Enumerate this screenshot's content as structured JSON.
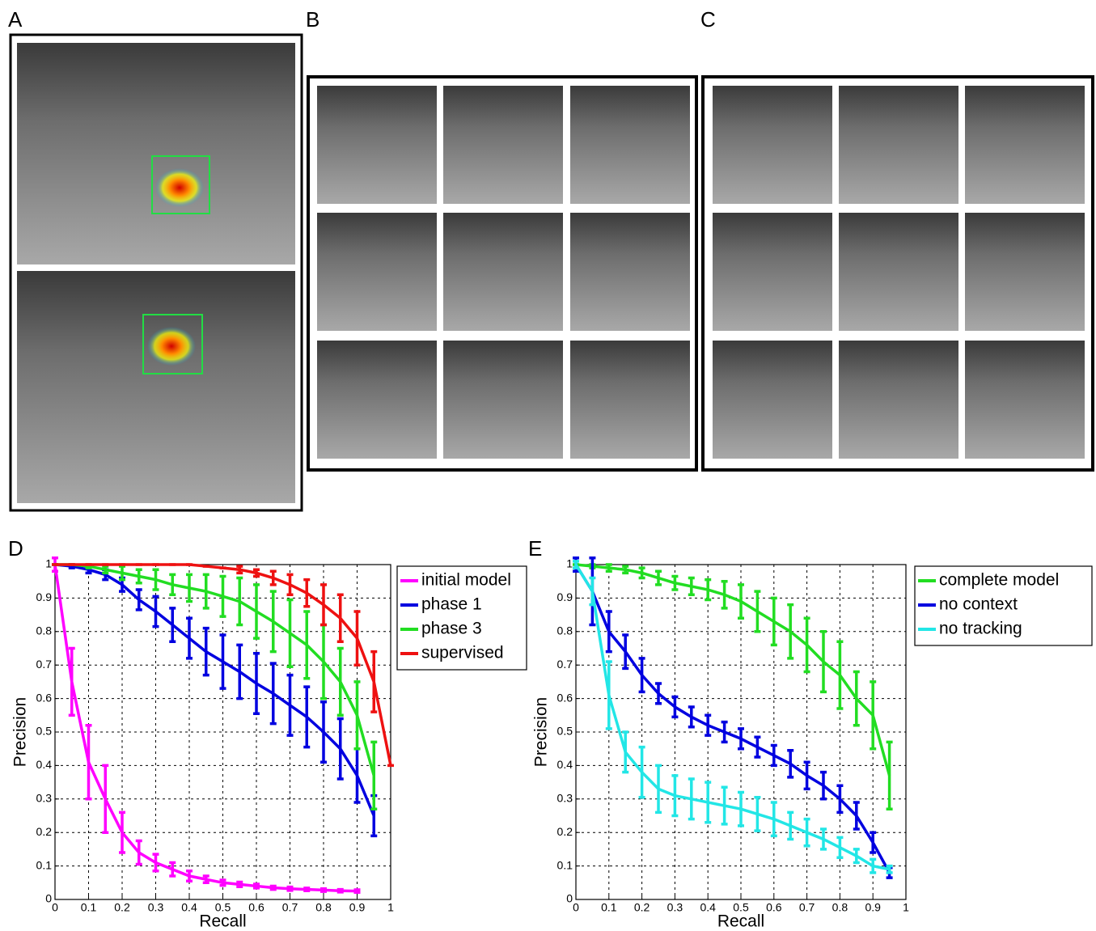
{
  "panels": {
    "a": "A",
    "b": "B",
    "c": "C"
  },
  "chart_data": [
    {
      "type": "line",
      "panel": "D",
      "xlabel": "Recall",
      "ylabel": "Precision",
      "xlim": [
        0,
        1
      ],
      "ylim": [
        0,
        1
      ],
      "xticks": [
        0,
        0.1,
        0.2,
        0.3,
        0.4,
        0.5,
        0.6,
        0.7,
        0.8,
        0.9,
        1
      ],
      "yticks": [
        0,
        0.1,
        0.2,
        0.3,
        0.4,
        0.5,
        0.6,
        0.7,
        0.8,
        0.9,
        1
      ],
      "grid": true,
      "legend": "outside-right",
      "series": [
        {
          "name": "initial model",
          "color": "#ff00ff",
          "x": [
            0,
            0.05,
            0.1,
            0.15,
            0.2,
            0.25,
            0.3,
            0.35,
            0.4,
            0.45,
            0.5,
            0.55,
            0.6,
            0.65,
            0.7,
            0.75,
            0.8,
            0.85,
            0.9
          ],
          "values": [
            1,
            0.65,
            0.41,
            0.3,
            0.2,
            0.14,
            0.11,
            0.09,
            0.07,
            0.06,
            0.05,
            0.045,
            0.04,
            0.035,
            0.032,
            0.03,
            0.028,
            0.026,
            0.025
          ],
          "errors": [
            0.02,
            0.1,
            0.11,
            0.1,
            0.06,
            0.035,
            0.025,
            0.02,
            0.015,
            0.01,
            0.008,
            0.007,
            0.006,
            0.005,
            0.005,
            0.004,
            0.004,
            0.004,
            0.004
          ]
        },
        {
          "name": "phase 1",
          "color": "#0000e0",
          "x": [
            0,
            0.05,
            0.1,
            0.15,
            0.2,
            0.25,
            0.3,
            0.35,
            0.4,
            0.45,
            0.5,
            0.55,
            0.6,
            0.65,
            0.7,
            0.75,
            0.8,
            0.85,
            0.9,
            0.95
          ],
          "values": [
            1,
            0.995,
            0.985,
            0.97,
            0.94,
            0.895,
            0.86,
            0.82,
            0.78,
            0.74,
            0.71,
            0.68,
            0.645,
            0.615,
            0.58,
            0.545,
            0.5,
            0.45,
            0.37,
            0.25
          ],
          "errors": [
            0,
            0.005,
            0.01,
            0.015,
            0.02,
            0.03,
            0.045,
            0.05,
            0.06,
            0.07,
            0.08,
            0.08,
            0.09,
            0.09,
            0.09,
            0.09,
            0.09,
            0.09,
            0.08,
            0.06
          ]
        },
        {
          "name": "phase 3",
          "color": "#22dd22",
          "x": [
            0,
            0.05,
            0.1,
            0.15,
            0.2,
            0.25,
            0.3,
            0.35,
            0.4,
            0.45,
            0.5,
            0.55,
            0.6,
            0.65,
            0.7,
            0.75,
            0.8,
            0.85,
            0.9,
            0.95
          ],
          "values": [
            1,
            1,
            0.995,
            0.985,
            0.975,
            0.965,
            0.955,
            0.94,
            0.93,
            0.92,
            0.905,
            0.89,
            0.86,
            0.83,
            0.795,
            0.76,
            0.71,
            0.65,
            0.55,
            0.37
          ],
          "errors": [
            0,
            0,
            0.005,
            0.01,
            0.02,
            0.02,
            0.03,
            0.03,
            0.04,
            0.05,
            0.06,
            0.07,
            0.08,
            0.09,
            0.1,
            0.1,
            0.11,
            0.1,
            0.1,
            0.1
          ]
        },
        {
          "name": "supervised",
          "color": "#ee1111",
          "x": [
            0,
            0.05,
            0.1,
            0.15,
            0.2,
            0.25,
            0.3,
            0.35,
            0.4,
            0.45,
            0.5,
            0.55,
            0.6,
            0.65,
            0.7,
            0.75,
            0.8,
            0.85,
            0.9,
            0.95,
            1
          ],
          "values": [
            1,
            1,
            1,
            1,
            1,
            1,
            1,
            1,
            1,
            0.995,
            0.99,
            0.985,
            0.975,
            0.96,
            0.94,
            0.915,
            0.88,
            0.84,
            0.78,
            0.65,
            0.4
          ],
          "errors": [
            0,
            0,
            0,
            0,
            0,
            0,
            0,
            0,
            0,
            0,
            0,
            0.01,
            0.01,
            0.02,
            0.03,
            0.04,
            0.06,
            0.07,
            0.08,
            0.09,
            0
          ]
        }
      ]
    },
    {
      "type": "line",
      "panel": "E",
      "xlabel": "Recall",
      "ylabel": "Precision",
      "xlim": [
        0,
        1
      ],
      "ylim": [
        0,
        1
      ],
      "xticks": [
        0,
        0.1,
        0.2,
        0.3,
        0.4,
        0.5,
        0.6,
        0.7,
        0.8,
        0.9,
        1
      ],
      "yticks": [
        0,
        0.1,
        0.2,
        0.3,
        0.4,
        0.5,
        0.6,
        0.7,
        0.8,
        0.9,
        1
      ],
      "grid": true,
      "legend": "outside-right",
      "series": [
        {
          "name": "complete model",
          "color": "#22dd22",
          "x": [
            0,
            0.05,
            0.1,
            0.15,
            0.2,
            0.25,
            0.3,
            0.35,
            0.4,
            0.45,
            0.5,
            0.55,
            0.6,
            0.65,
            0.7,
            0.75,
            0.8,
            0.85,
            0.9,
            0.95
          ],
          "values": [
            1,
            0.995,
            0.99,
            0.985,
            0.975,
            0.96,
            0.945,
            0.935,
            0.925,
            0.91,
            0.89,
            0.86,
            0.83,
            0.8,
            0.76,
            0.71,
            0.67,
            0.6,
            0.55,
            0.37
          ],
          "errors": [
            0,
            0.005,
            0.01,
            0.01,
            0.015,
            0.02,
            0.02,
            0.025,
            0.03,
            0.04,
            0.05,
            0.06,
            0.07,
            0.08,
            0.08,
            0.09,
            0.1,
            0.08,
            0.1,
            0.1
          ]
        },
        {
          "name": "no context",
          "color": "#0000e0",
          "x": [
            0,
            0.05,
            0.1,
            0.15,
            0.2,
            0.25,
            0.3,
            0.35,
            0.4,
            0.45,
            0.5,
            0.55,
            0.6,
            0.65,
            0.7,
            0.75,
            0.8,
            0.85,
            0.9,
            0.95
          ],
          "values": [
            1,
            0.92,
            0.8,
            0.74,
            0.67,
            0.615,
            0.575,
            0.545,
            0.52,
            0.5,
            0.48,
            0.455,
            0.43,
            0.405,
            0.37,
            0.34,
            0.3,
            0.25,
            0.17,
            0.08
          ],
          "errors": [
            0.02,
            0.1,
            0.06,
            0.05,
            0.05,
            0.03,
            0.03,
            0.03,
            0.03,
            0.03,
            0.03,
            0.03,
            0.03,
            0.04,
            0.04,
            0.04,
            0.04,
            0.04,
            0.03,
            0.015
          ]
        },
        {
          "name": "no tracking",
          "color": "#22e6e6",
          "x": [
            0,
            0.05,
            0.1,
            0.15,
            0.2,
            0.25,
            0.3,
            0.35,
            0.4,
            0.45,
            0.5,
            0.55,
            0.6,
            0.65,
            0.7,
            0.75,
            0.8,
            0.85,
            0.9,
            0.95
          ],
          "values": [
            1,
            0.92,
            0.61,
            0.44,
            0.38,
            0.33,
            0.31,
            0.3,
            0.29,
            0.28,
            0.27,
            0.255,
            0.24,
            0.22,
            0.2,
            0.18,
            0.155,
            0.13,
            0.1,
            0.09
          ],
          "errors": [
            0.01,
            0.04,
            0.1,
            0.06,
            0.075,
            0.07,
            0.06,
            0.06,
            0.06,
            0.055,
            0.05,
            0.05,
            0.05,
            0.04,
            0.04,
            0.03,
            0.03,
            0.02,
            0.02,
            0.01
          ]
        }
      ]
    }
  ]
}
